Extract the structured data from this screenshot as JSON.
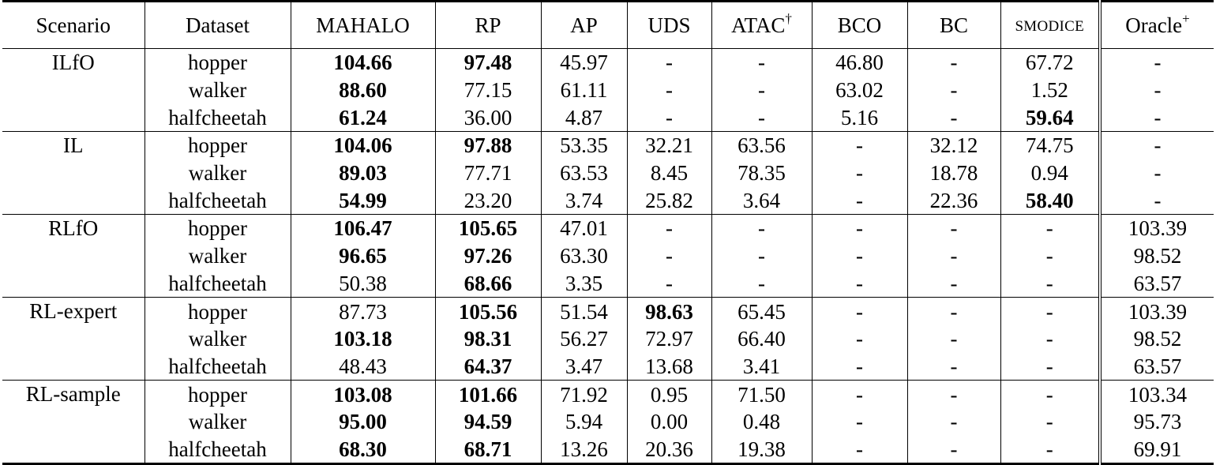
{
  "headers": {
    "scenario": "Scenario",
    "dataset": "Dataset",
    "mahalo": "MAHALO",
    "rp": "RP",
    "ap": "AP",
    "uds": "UDS",
    "atac": "ATAC",
    "atac_mark": "†",
    "bco": "BCO",
    "bc": "BC",
    "smodice": "SMODICE",
    "oracle": "Oracle",
    "oracle_mark": "+"
  },
  "groups": [
    {
      "scenario": "ILfO",
      "rows": [
        {
          "dataset": "hopper",
          "mahalo": "104.66",
          "rp": "97.48",
          "ap": "45.97",
          "uds": "-",
          "atac": "-",
          "bco": "46.80",
          "bc": "-",
          "smodice": "67.72",
          "oracle": "-"
        },
        {
          "dataset": "walker",
          "mahalo": "88.60",
          "rp": "77.15",
          "ap": "61.11",
          "uds": "-",
          "atac": "-",
          "bco": "63.02",
          "bc": "-",
          "smodice": "1.52",
          "oracle": "-"
        },
        {
          "dataset": "halfcheetah",
          "mahalo": "61.24",
          "rp": "36.00",
          "ap": "4.87",
          "uds": "-",
          "atac": "-",
          "bco": "5.16",
          "bc": "-",
          "smodice": "59.64",
          "oracle": "-"
        }
      ]
    },
    {
      "scenario": "IL",
      "rows": [
        {
          "dataset": "hopper",
          "mahalo": "104.06",
          "rp": "97.88",
          "ap": "53.35",
          "uds": "32.21",
          "atac": "63.56",
          "bco": "-",
          "bc": "32.12",
          "smodice": "74.75",
          "oracle": "-"
        },
        {
          "dataset": "walker",
          "mahalo": "89.03",
          "rp": "77.71",
          "ap": "63.53",
          "uds": "8.45",
          "atac": "78.35",
          "bco": "-",
          "bc": "18.78",
          "smodice": "0.94",
          "oracle": "-"
        },
        {
          "dataset": "halfcheetah",
          "mahalo": "54.99",
          "rp": "23.20",
          "ap": "3.74",
          "uds": "25.82",
          "atac": "3.64",
          "bco": "-",
          "bc": "22.36",
          "smodice": "58.40",
          "oracle": "-"
        }
      ]
    },
    {
      "scenario": "RLfO",
      "rows": [
        {
          "dataset": "hopper",
          "mahalo": "106.47",
          "rp": "105.65",
          "ap": "47.01",
          "uds": "-",
          "atac": "-",
          "bco": "-",
          "bc": "-",
          "smodice": "-",
          "oracle": "103.39"
        },
        {
          "dataset": "walker",
          "mahalo": "96.65",
          "rp": "97.26",
          "ap": "63.30",
          "uds": "-",
          "atac": "-",
          "bco": "-",
          "bc": "-",
          "smodice": "-",
          "oracle": "98.52"
        },
        {
          "dataset": "halfcheetah",
          "mahalo": "50.38",
          "rp": "68.66",
          "ap": "3.35",
          "uds": "-",
          "atac": "-",
          "bco": "-",
          "bc": "-",
          "smodice": "-",
          "oracle": "63.57"
        }
      ]
    },
    {
      "scenario": "RL-expert",
      "rows": [
        {
          "dataset": "hopper",
          "mahalo": "87.73",
          "rp": "105.56",
          "ap": "51.54",
          "uds": "98.63",
          "atac": "65.45",
          "bco": "-",
          "bc": "-",
          "smodice": "-",
          "oracle": "103.39"
        },
        {
          "dataset": "walker",
          "mahalo": "103.18",
          "rp": "98.31",
          "ap": "56.27",
          "uds": "72.97",
          "atac": "66.40",
          "bco": "-",
          "bc": "-",
          "smodice": "-",
          "oracle": "98.52"
        },
        {
          "dataset": "halfcheetah",
          "mahalo": "48.43",
          "rp": "64.37",
          "ap": "3.47",
          "uds": "13.68",
          "atac": "3.41",
          "bco": "-",
          "bc": "-",
          "smodice": "-",
          "oracle": "63.57"
        }
      ]
    },
    {
      "scenario": "RL-sample",
      "rows": [
        {
          "dataset": "hopper",
          "mahalo": "103.08",
          "rp": "101.66",
          "ap": "71.92",
          "uds": "0.95",
          "atac": "71.50",
          "bco": "-",
          "bc": "-",
          "smodice": "-",
          "oracle": "103.34"
        },
        {
          "dataset": "walker",
          "mahalo": "95.00",
          "rp": "94.59",
          "ap": "5.94",
          "uds": "0.00",
          "atac": "0.48",
          "bco": "-",
          "bc": "-",
          "smodice": "-",
          "oracle": "95.73"
        },
        {
          "dataset": "halfcheetah",
          "mahalo": "68.30",
          "rp": "68.71",
          "ap": "13.26",
          "uds": "20.36",
          "atac": "19.38",
          "bco": "-",
          "bc": "-",
          "smodice": "-",
          "oracle": "69.91"
        }
      ]
    }
  ]
}
